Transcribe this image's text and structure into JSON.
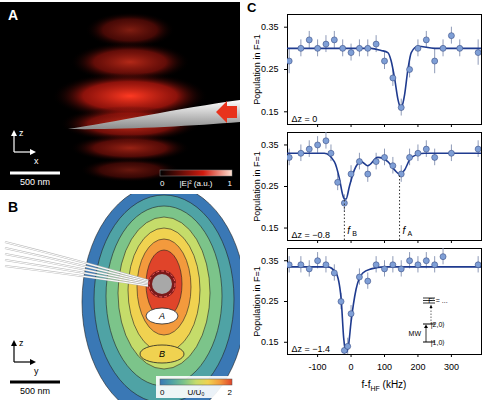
{
  "panels": {
    "A": {
      "letter": "A",
      "axes": [
        "z",
        "x"
      ],
      "scale_bar": "500 nm",
      "colorbar": {
        "range": [
          0,
          1
        ],
        "label": "|E|² (a.u.)"
      }
    },
    "B": {
      "letter": "B",
      "axes": [
        "z",
        "y"
      ],
      "scale_bar": "500 nm",
      "regions": [
        "A",
        "B"
      ],
      "colorbar": {
        "range": [
          0,
          2
        ],
        "label": "U/U₀"
      }
    }
  },
  "panel_label": "C",
  "chart_data": [
    {
      "type": "scatter",
      "annotation": "Δz = 0",
      "ylabel": "Population in F=1",
      "xlim": [
        -190,
        390
      ],
      "ylim": [
        0.12,
        0.38
      ],
      "xticks": [
        -100,
        0,
        100,
        200,
        300
      ],
      "yticks": [
        0.15,
        0.25,
        0.35
      ],
      "tick_labels": "y",
      "points": {
        "color": "#7f9fd6",
        "x": [
          -185,
          -150,
          -125,
          -100,
          -75,
          -50,
          -25,
          0,
          25,
          50,
          75,
          100,
          125,
          150,
          175,
          200,
          225,
          250,
          275,
          300,
          325,
          380
        ],
        "values": [
          0.27,
          0.3,
          0.32,
          0.3,
          0.31,
          0.32,
          0.3,
          0.29,
          0.3,
          0.3,
          0.31,
          0.27,
          0.23,
          0.16,
          0.25,
          0.3,
          0.32,
          0.27,
          0.3,
          0.33,
          0.3,
          0.29
        ],
        "errors": [
          0.03,
          0.02,
          0.02,
          0.02,
          0.02,
          0.02,
          0.02,
          0.02,
          0.02,
          0.02,
          0.02,
          0.02,
          0.02,
          0.02,
          0.02,
          0.02,
          0.02,
          0.03,
          0.02,
          0.02,
          0.02,
          0.03
        ]
      },
      "fit": {
        "color": "#1f3b8f",
        "x": [
          -190,
          -100,
          0,
          60,
          90,
          110,
          120,
          130,
          140,
          145,
          150,
          155,
          160,
          170,
          180,
          200,
          250,
          300,
          390
        ],
        "values": [
          0.3,
          0.3,
          0.3,
          0.3,
          0.295,
          0.29,
          0.27,
          0.23,
          0.18,
          0.165,
          0.16,
          0.17,
          0.19,
          0.25,
          0.29,
          0.305,
          0.3,
          0.3,
          0.3
        ]
      }
    },
    {
      "type": "scatter",
      "annotation": "Δz = −0.8",
      "ylabel": "Population in F=1",
      "xlim": [
        -190,
        390
      ],
      "ylim": [
        0.12,
        0.38
      ],
      "xticks": [
        -100,
        0,
        100,
        200,
        300
      ],
      "yticks": [
        0.15,
        0.25,
        0.35
      ],
      "tick_labels": "y",
      "points": {
        "color": "#7f9fd6",
        "x": [
          -185,
          -150,
          -125,
          -100,
          -75,
          -60,
          -40,
          -20,
          0,
          25,
          50,
          75,
          100,
          125,
          150,
          175,
          200,
          225,
          250,
          300,
          380
        ],
        "values": [
          0.32,
          0.33,
          0.34,
          0.35,
          0.36,
          0.33,
          0.26,
          0.21,
          0.28,
          0.31,
          0.28,
          0.31,
          0.32,
          0.3,
          0.28,
          0.32,
          0.33,
          0.34,
          0.32,
          0.33,
          0.34
        ],
        "errors": [
          0.02,
          0.02,
          0.02,
          0.02,
          0.02,
          0.02,
          0.02,
          0.02,
          0.02,
          0.02,
          0.02,
          0.02,
          0.02,
          0.02,
          0.02,
          0.02,
          0.02,
          0.02,
          0.02,
          0.02,
          0.02
        ]
      },
      "fit": {
        "color": "#1f3b8f",
        "x": [
          -190,
          -80,
          -50,
          -35,
          -25,
          -20,
          -15,
          -5,
          10,
          30,
          50,
          80,
          110,
          130,
          145,
          160,
          180,
          220,
          390
        ],
        "values": [
          0.33,
          0.33,
          0.31,
          0.27,
          0.23,
          0.22,
          0.22,
          0.25,
          0.29,
          0.31,
          0.3,
          0.32,
          0.31,
          0.29,
          0.28,
          0.29,
          0.32,
          0.33,
          0.33
        ]
      },
      "markers": [
        {
          "label": "f",
          "subscript": "B",
          "x": -20
        },
        {
          "label": "f",
          "subscript": "A",
          "x": 145
        }
      ]
    },
    {
      "type": "scatter",
      "annotation": "Δz = −1.4",
      "ylabel": "Population in F=1",
      "xlabel": [
        "f-f",
        "HF",
        " (kHz)"
      ],
      "xlim": [
        -190,
        390
      ],
      "ylim": [
        0.12,
        0.38
      ],
      "xticks": [
        -100,
        0,
        100,
        200,
        300
      ],
      "yticks": [
        0.15,
        0.25,
        0.35
      ],
      "points": {
        "color": "#7f9fd6",
        "x": [
          -185,
          -150,
          -125,
          -100,
          -75,
          -50,
          -30,
          -20,
          -10,
          0,
          25,
          50,
          75,
          100,
          125,
          150,
          175,
          200,
          225,
          250,
          275,
          380
        ],
        "values": [
          0.34,
          0.34,
          0.33,
          0.35,
          0.34,
          0.32,
          0.25,
          0.13,
          0.14,
          0.22,
          0.31,
          0.3,
          0.34,
          0.33,
          0.34,
          0.33,
          0.35,
          0.34,
          0.35,
          0.34,
          0.36,
          0.34
        ],
        "errors": [
          0.02,
          0.02,
          0.02,
          0.02,
          0.02,
          0.02,
          0.02,
          0.02,
          0.02,
          0.02,
          0.02,
          0.02,
          0.02,
          0.02,
          0.02,
          0.02,
          0.02,
          0.02,
          0.02,
          0.02,
          0.02,
          0.02
        ]
      },
      "fit": {
        "color": "#1f3b8f",
        "x": [
          -190,
          -70,
          -45,
          -30,
          -22,
          -15,
          -8,
          0,
          15,
          35,
          60,
          100,
          390
        ],
        "values": [
          0.335,
          0.335,
          0.32,
          0.26,
          0.16,
          0.125,
          0.14,
          0.2,
          0.28,
          0.32,
          0.33,
          0.335,
          0.335
        ]
      },
      "inset": {
        "levels": [
          "F' = ...",
          "|2,0⟩",
          "|1,0⟩"
        ],
        "transition": "MW"
      }
    }
  ]
}
